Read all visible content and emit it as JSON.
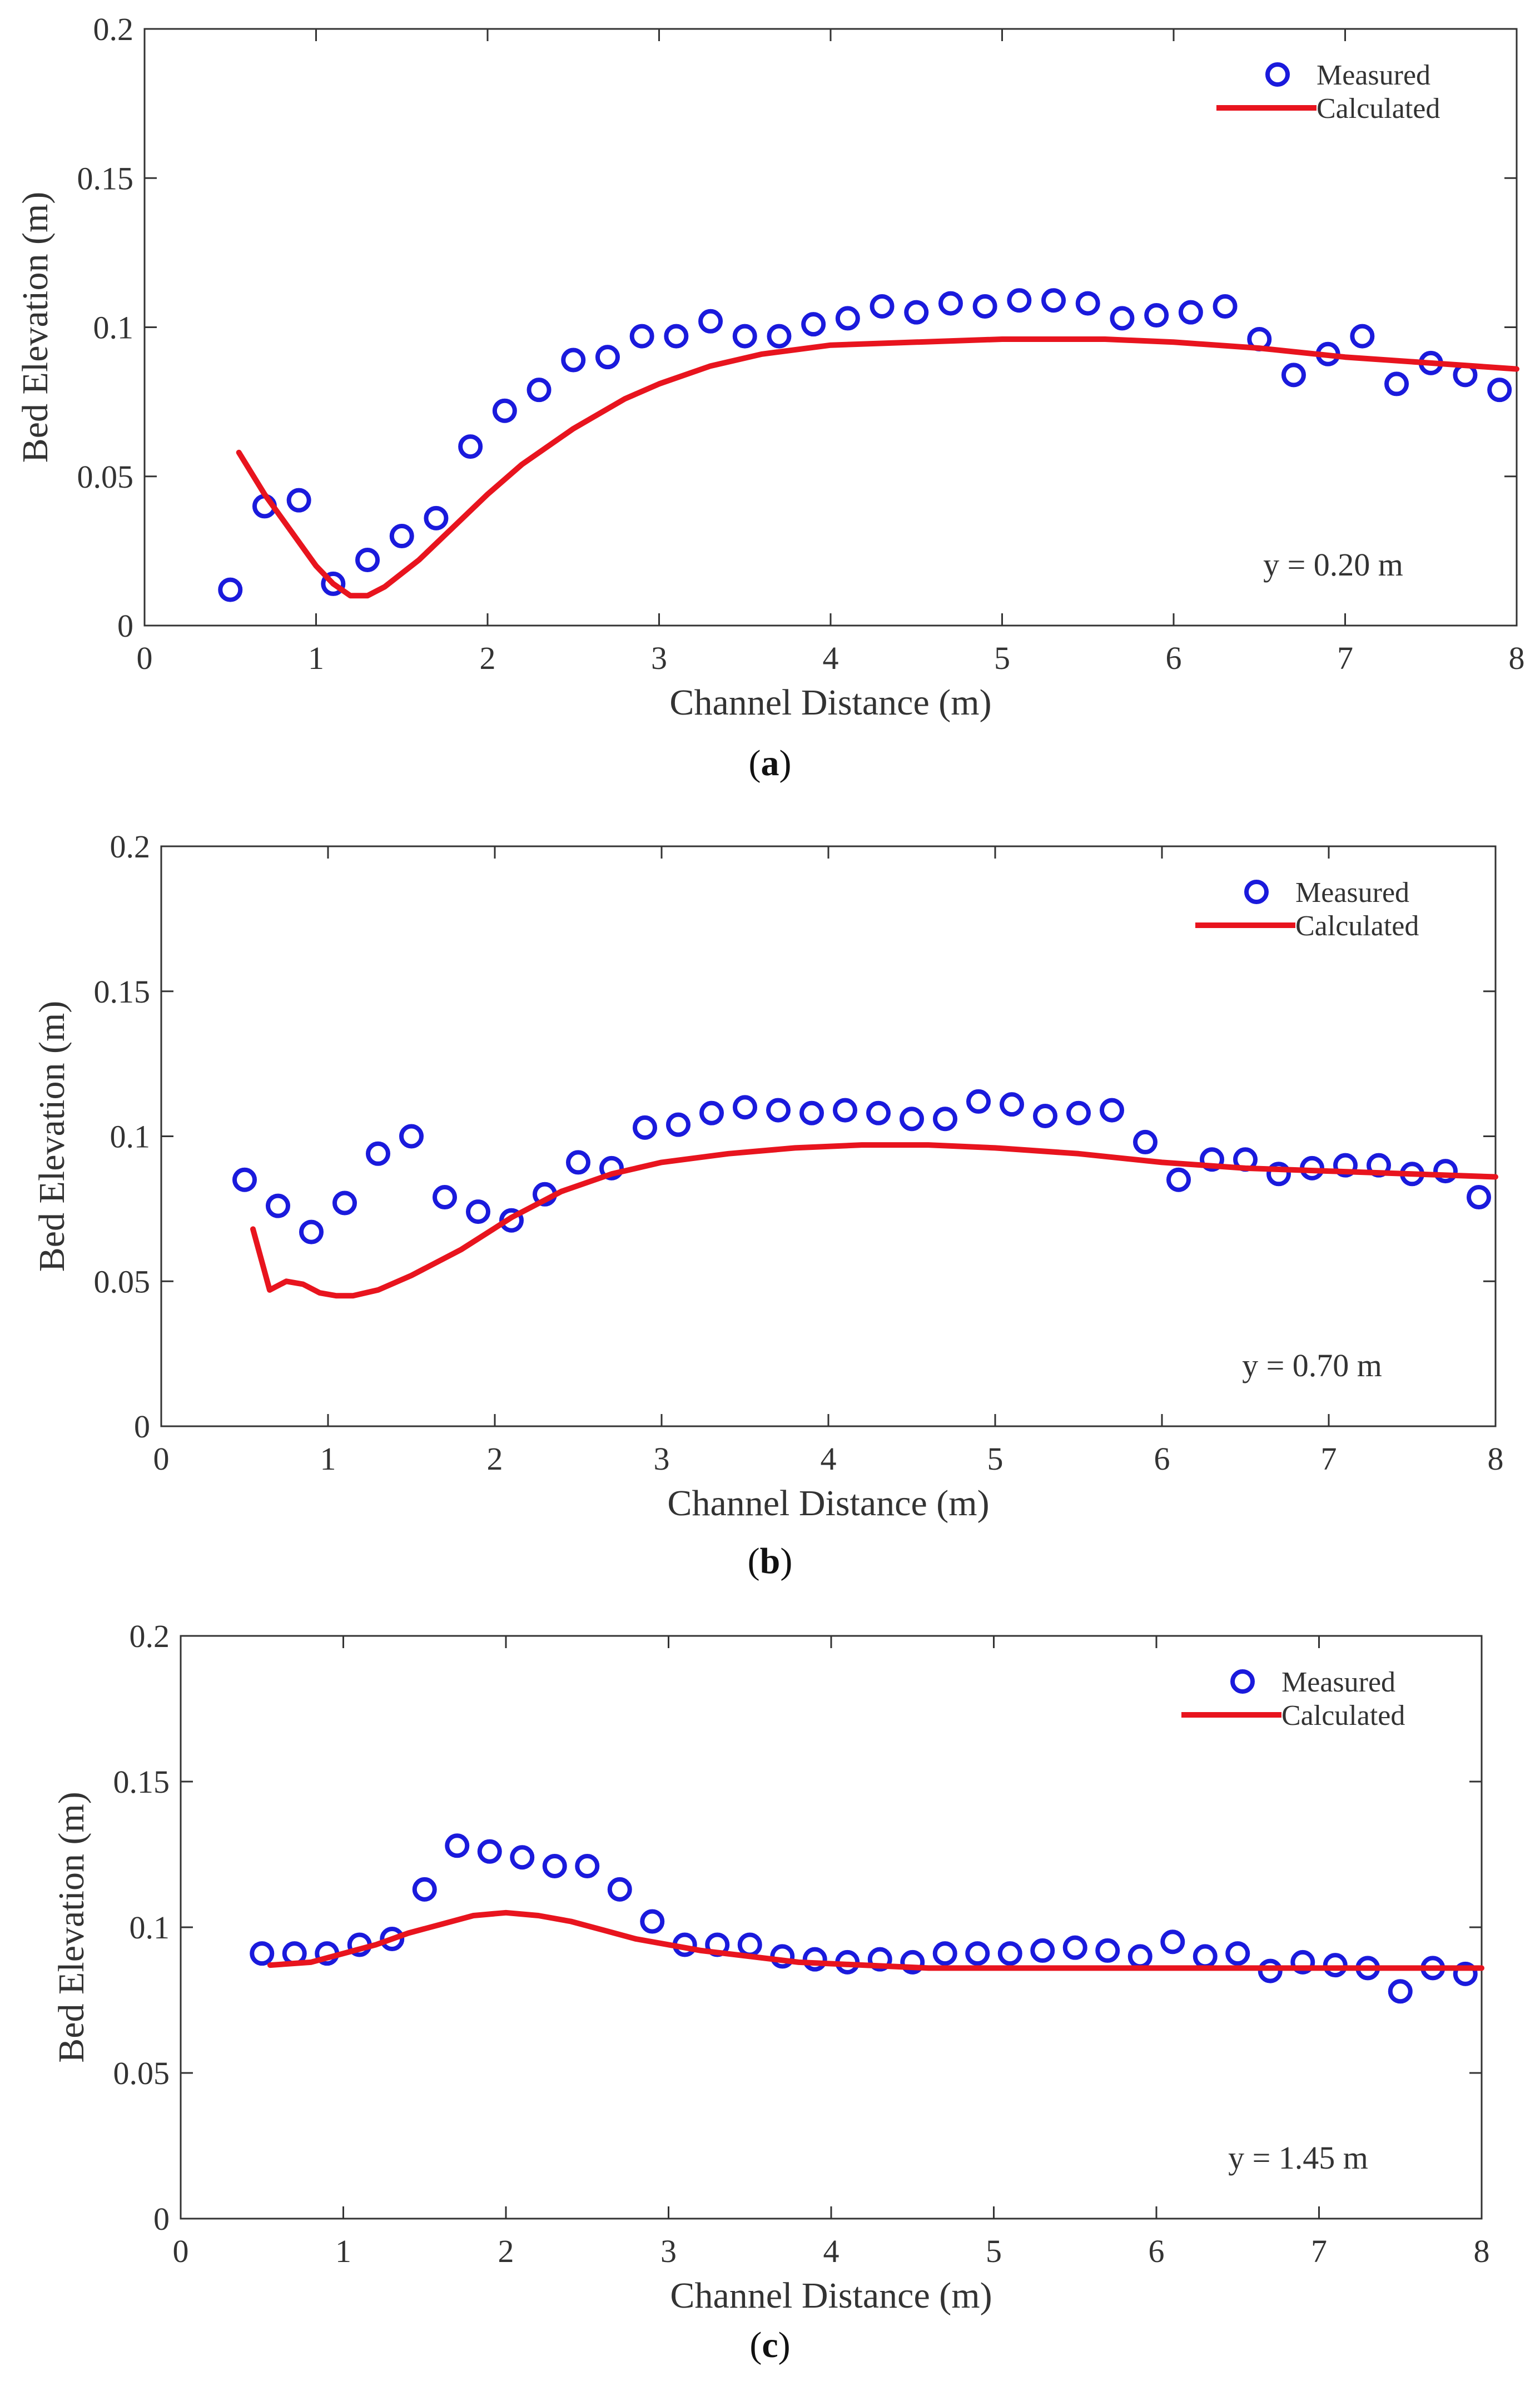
{
  "chart_data": [
    {
      "type": "scatter",
      "panel_label_open": "(",
      "panel_label_letter": "a",
      "panel_label_close": ")",
      "annotation": "y = 0.20 m",
      "xlabel": "Channel Distance (m)",
      "ylabel": "Bed Elevation (m)",
      "xlim": [
        0,
        8
      ],
      "ylim": [
        0,
        0.2
      ],
      "xticks": [
        "0",
        "1",
        "2",
        "3",
        "4",
        "5",
        "6",
        "7",
        "8"
      ],
      "yticks": [
        "0",
        "0.05",
        "0.1",
        "0.15",
        "0.2"
      ],
      "legend_position": "top-right",
      "series": [
        {
          "name": "Measured",
          "kind": "markers",
          "x": [
            0.5,
            0.7,
            0.9,
            1.1,
            1.3,
            1.5,
            1.7,
            1.9,
            2.1,
            2.3,
            2.5,
            2.7,
            2.9,
            3.1,
            3.3,
            3.5,
            3.7,
            3.9,
            4.1,
            4.3,
            4.5,
            4.7,
            4.9,
            5.1,
            5.3,
            5.5,
            5.7,
            5.9,
            6.1,
            6.3,
            6.5,
            6.7,
            6.9,
            7.1,
            7.3,
            7.5,
            7.7,
            7.9
          ],
          "y": [
            0.012,
            0.04,
            0.042,
            0.014,
            0.022,
            0.03,
            0.036,
            0.06,
            0.072,
            0.079,
            0.089,
            0.09,
            0.097,
            0.097,
            0.102,
            0.097,
            0.097,
            0.101,
            0.103,
            0.107,
            0.105,
            0.108,
            0.107,
            0.109,
            0.109,
            0.108,
            0.103,
            0.104,
            0.105,
            0.107,
            0.096,
            0.084,
            0.091,
            0.097,
            0.081,
            0.088,
            0.084,
            0.079
          ]
        },
        {
          "name": "Calculated",
          "kind": "line",
          "x": [
            0.55,
            0.7,
            0.85,
            1.0,
            1.1,
            1.2,
            1.3,
            1.4,
            1.6,
            1.8,
            2.0,
            2.2,
            2.5,
            2.8,
            3.0,
            3.3,
            3.6,
            4.0,
            4.5,
            5.0,
            5.3,
            5.6,
            6.0,
            6.5,
            7.0,
            7.5,
            8.0
          ],
          "y": [
            0.058,
            0.044,
            0.032,
            0.02,
            0.014,
            0.01,
            0.01,
            0.013,
            0.022,
            0.033,
            0.044,
            0.054,
            0.066,
            0.076,
            0.081,
            0.087,
            0.091,
            0.094,
            0.095,
            0.096,
            0.096,
            0.096,
            0.095,
            0.093,
            0.09,
            0.088,
            0.086
          ]
        }
      ]
    },
    {
      "type": "scatter",
      "panel_label_open": "(",
      "panel_label_letter": "b",
      "panel_label_close": ")",
      "annotation": "y = 0.70 m",
      "xlabel": "Channel Distance (m)",
      "ylabel": "Bed Elevation (m)",
      "xlim": [
        0,
        8
      ],
      "ylim": [
        0,
        0.2
      ],
      "xticks": [
        "0",
        "1",
        "2",
        "3",
        "4",
        "5",
        "6",
        "7",
        "8"
      ],
      "yticks": [
        "0",
        "0.05",
        "0.1",
        "0.15",
        "0.2"
      ],
      "legend_position": "top-right",
      "series": [
        {
          "name": "Measured",
          "kind": "markers",
          "x": [
            0.5,
            0.7,
            0.9,
            1.1,
            1.3,
            1.5,
            1.7,
            1.9,
            2.1,
            2.3,
            2.5,
            2.7,
            2.9,
            3.1,
            3.3,
            3.5,
            3.7,
            3.9,
            4.1,
            4.3,
            4.5,
            4.7,
            4.9,
            5.1,
            5.3,
            5.5,
            5.7,
            5.9,
            6.1,
            6.3,
            6.5,
            6.7,
            6.9,
            7.1,
            7.3,
            7.5,
            7.7,
            7.9
          ],
          "y": [
            0.085,
            0.076,
            0.067,
            0.077,
            0.094,
            0.1,
            0.079,
            0.074,
            0.071,
            0.08,
            0.091,
            0.089,
            0.103,
            0.104,
            0.108,
            0.11,
            0.109,
            0.108,
            0.109,
            0.108,
            0.106,
            0.106,
            0.112,
            0.111,
            0.107,
            0.108,
            0.109,
            0.098,
            0.085,
            0.092,
            0.092,
            0.087,
            0.089,
            0.09,
            0.09,
            0.087,
            0.088,
            0.079
          ]
        },
        {
          "name": "Calculated",
          "kind": "line",
          "x": [
            0.55,
            0.65,
            0.75,
            0.85,
            0.95,
            1.05,
            1.15,
            1.3,
            1.5,
            1.8,
            2.1,
            2.4,
            2.7,
            3.0,
            3.4,
            3.8,
            4.2,
            4.6,
            5.0,
            5.5,
            6.0,
            6.5,
            7.0,
            7.5,
            8.0
          ],
          "y": [
            0.068,
            0.047,
            0.05,
            0.049,
            0.046,
            0.045,
            0.045,
            0.047,
            0.052,
            0.061,
            0.072,
            0.081,
            0.087,
            0.091,
            0.094,
            0.096,
            0.097,
            0.097,
            0.096,
            0.094,
            0.091,
            0.089,
            0.088,
            0.087,
            0.086
          ]
        }
      ]
    },
    {
      "type": "scatter",
      "panel_label_open": "(",
      "panel_label_letter": "c",
      "panel_label_close": ")",
      "annotation": "y = 1.45 m",
      "xlabel": "Channel Distance (m)",
      "ylabel": "Bed Elevation (m)",
      "xlim": [
        0,
        8
      ],
      "ylim": [
        0,
        0.2
      ],
      "xticks": [
        "0",
        "1",
        "2",
        "3",
        "4",
        "5",
        "6",
        "7",
        "8"
      ],
      "yticks": [
        "0",
        "0.05",
        "0.1",
        "0.15",
        "0.2"
      ],
      "legend_position": "top-right",
      "series": [
        {
          "name": "Measured",
          "kind": "markers",
          "x": [
            0.5,
            0.7,
            0.9,
            1.1,
            1.3,
            1.5,
            1.7,
            1.9,
            2.1,
            2.3,
            2.5,
            2.7,
            2.9,
            3.1,
            3.3,
            3.5,
            3.7,
            3.9,
            4.1,
            4.3,
            4.5,
            4.7,
            4.9,
            5.1,
            5.3,
            5.5,
            5.7,
            5.9,
            6.1,
            6.3,
            6.5,
            6.7,
            6.9,
            7.1,
            7.3,
            7.5,
            7.7,
            7.9
          ],
          "y": [
            0.091,
            0.091,
            0.091,
            0.094,
            0.096,
            0.113,
            0.128,
            0.126,
            0.124,
            0.121,
            0.121,
            0.113,
            0.102,
            0.094,
            0.094,
            0.094,
            0.09,
            0.089,
            0.088,
            0.089,
            0.088,
            0.091,
            0.091,
            0.091,
            0.092,
            0.093,
            0.092,
            0.09,
            0.095,
            0.09,
            0.091,
            0.085,
            0.088,
            0.087,
            0.086,
            0.078,
            0.086,
            0.084
          ]
        },
        {
          "name": "Calculated",
          "kind": "line",
          "x": [
            0.55,
            0.8,
            1.0,
            1.2,
            1.4,
            1.6,
            1.8,
            2.0,
            2.2,
            2.4,
            2.6,
            2.8,
            3.0,
            3.2,
            3.5,
            3.8,
            4.2,
            4.6,
            5.0,
            5.5,
            6.0,
            6.5,
            7.0,
            7.5,
            8.0
          ],
          "y": [
            0.087,
            0.088,
            0.091,
            0.094,
            0.098,
            0.101,
            0.104,
            0.105,
            0.104,
            0.102,
            0.099,
            0.096,
            0.094,
            0.092,
            0.09,
            0.088,
            0.087,
            0.086,
            0.086,
            0.086,
            0.086,
            0.086,
            0.086,
            0.086,
            0.086
          ]
        }
      ]
    }
  ],
  "colors": {
    "measured": "#1a1adc",
    "calculated": "#e8141e",
    "axis": "#333333"
  }
}
